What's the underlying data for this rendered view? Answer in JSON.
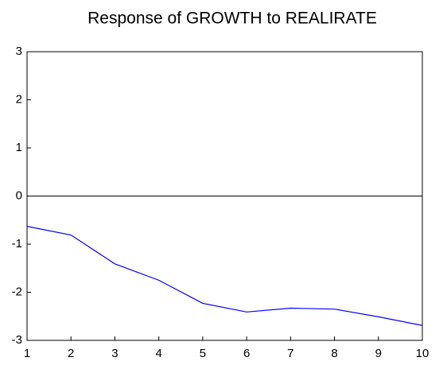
{
  "chart_data": {
    "type": "line",
    "title": "Response of GROWTH to REALIRATE",
    "x": [
      1,
      2,
      3,
      4,
      5,
      6,
      7,
      8,
      9,
      10
    ],
    "values": [
      -0.63,
      -0.81,
      -1.41,
      -1.75,
      -2.23,
      -2.41,
      -2.33,
      -2.35,
      -2.51,
      -2.69
    ],
    "color": "#0000ff",
    "xlim": [
      1,
      10
    ],
    "xticks": [
      1,
      2,
      3,
      4,
      5,
      6,
      7,
      8,
      9,
      10
    ],
    "ylim": [
      -3,
      3
    ],
    "yticks": [
      -3,
      -2,
      -1,
      0,
      1,
      2,
      3
    ],
    "zero_line": true
  }
}
